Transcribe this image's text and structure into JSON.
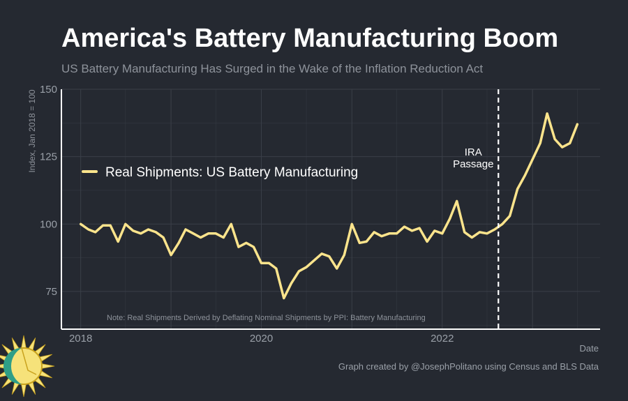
{
  "title": "America's Battery Manufacturing Boom",
  "subtitle": "US Battery Manufacturing Has Surged in the Wake of the Inflation Reduction Act",
  "credit": "Graph created by @JosephPolitano using Census and BLS Data",
  "chart_data": {
    "type": "line",
    "xlabel": "Date",
    "ylabel": "Index, Jan 2018 = 100",
    "xlim": [
      "2017-10-15",
      "2023-10-01"
    ],
    "ylim": [
      61,
      150
    ],
    "x_ticks": [
      "2018",
      "2020",
      "2022"
    ],
    "y_ticks": [
      75,
      100,
      125,
      150
    ],
    "grid": true,
    "legend_position": "middle-left",
    "annotations": [
      {
        "type": "vline",
        "x": "2022-08-16",
        "label_lines": [
          "IRA",
          "Passage"
        ],
        "style": "dashed"
      },
      {
        "type": "note",
        "text": "Note: Real Shipments Derived by Deflating Nominal Shipments by PPI: Battery Manufacturing"
      }
    ],
    "colors": {
      "line": "#fce48c",
      "background": "#252931",
      "grid": "#3a3f48",
      "axis": "#ffffff",
      "vline": "#ffffff"
    },
    "series": [
      {
        "name": "Real Shipments: US Battery Manufacturing",
        "x": [
          "2018-01",
          "2018-02",
          "2018-03",
          "2018-04",
          "2018-05",
          "2018-06",
          "2018-07",
          "2018-08",
          "2018-09",
          "2018-10",
          "2018-11",
          "2018-12",
          "2019-01",
          "2019-02",
          "2019-03",
          "2019-04",
          "2019-05",
          "2019-06",
          "2019-07",
          "2019-08",
          "2019-09",
          "2019-10",
          "2019-11",
          "2019-12",
          "2020-01",
          "2020-02",
          "2020-03",
          "2020-04",
          "2020-05",
          "2020-06",
          "2020-07",
          "2020-08",
          "2020-09",
          "2020-10",
          "2020-11",
          "2020-12",
          "2021-01",
          "2021-02",
          "2021-03",
          "2021-04",
          "2021-05",
          "2021-06",
          "2021-07",
          "2021-08",
          "2021-09",
          "2021-10",
          "2021-11",
          "2021-12",
          "2022-01",
          "2022-02",
          "2022-03",
          "2022-04",
          "2022-05",
          "2022-06",
          "2022-07",
          "2022-08",
          "2022-09",
          "2022-10",
          "2022-11",
          "2022-12",
          "2023-01",
          "2023-02",
          "2023-03",
          "2023-04",
          "2023-05",
          "2023-06",
          "2023-07"
        ],
        "values": [
          100,
          98,
          97,
          99.5,
          99.5,
          93.5,
          100,
          97.5,
          96.5,
          98,
          97,
          95,
          88.5,
          93,
          98,
          96.5,
          95,
          96.5,
          96.5,
          95,
          100,
          91.5,
          93,
          91.5,
          85.5,
          85.5,
          83.5,
          72.5,
          78,
          82.5,
          84,
          86.5,
          89,
          88,
          83.5,
          88.5,
          100,
          93,
          93.5,
          97,
          95.5,
          96.5,
          96.5,
          99,
          97.5,
          98.5,
          93.5,
          97.5,
          96.5,
          102,
          108.5,
          97,
          95,
          97,
          96.5,
          98,
          100,
          103,
          113,
          118,
          124,
          130,
          141,
          131.5,
          128.5,
          130,
          137
        ]
      }
    ]
  }
}
